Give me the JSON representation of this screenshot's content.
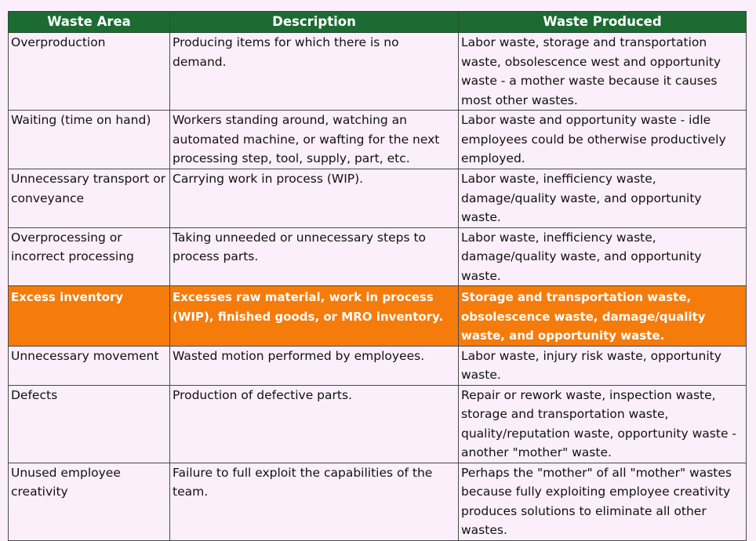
{
  "table": {
    "headers": [
      "Waste Area",
      "Description",
      "Waste Produced"
    ],
    "rows": [
      {
        "area": "Overproduction",
        "description": "Producing items for which there is no demand.",
        "produced": "Labor waste, storage and transportation waste, obsolescence west and opportunity waste - a mother waste because it causes most other wastes."
      },
      {
        "area": "Waiting (time on hand)",
        "description": "Workers standing around, watching an automated machine, or wafting for the next processing step, tool, supply, part, etc.",
        "produced": "Labor waste and opportunity waste - idle employees could be otherwise productively employed."
      },
      {
        "area": "Unnecessary transport or conveyance",
        "description": "Carrying work in process (WIP).",
        "produced": "Labor waste, inefficiency waste, damage/quality waste, and opportunity waste."
      },
      {
        "area": "Overprocessing or incorrect processing",
        "description": "Taking unneeded or unnecessary steps to process parts.",
        "produced": "Labor waste, inefficiency waste, damage/quality waste, and opportunity waste."
      },
      {
        "area": "Excess inventory",
        "description": "Excesses raw material, work in process (WIP), finished goods, or MRO inventory.",
        "produced": "Storage and transportation waste, obsolescence waste, damage/quality waste, and opportunity waste."
      },
      {
        "area": "Unnecessary movement",
        "description": "Wasted motion performed by employees.",
        "produced": "Labor waste, injury risk waste, opportunity waste."
      },
      {
        "area": "Defects",
        "description": "Production of defective parts.",
        "produced": "Repair or rework waste, inspection waste, storage and transportation waste, quality/reputation waste, opportunity waste - another \"mother\" waste."
      },
      {
        "area": "Unused employee creativity",
        "description": "Failure to full exploit the capabilities of the team.",
        "produced": "Perhaps the \"mother\" of all \"mother\" wastes because fully exploiting employee creativity produces solutions to eliminate all other wastes."
      }
    ]
  },
  "colors": {
    "header_bg": "#1c6b33",
    "header_text": "#ffffff",
    "row_bg": "#fbeffb",
    "highlight_bg": "#f57b0b",
    "highlight_text": "#ffffff",
    "border": "#4a4a4a"
  }
}
